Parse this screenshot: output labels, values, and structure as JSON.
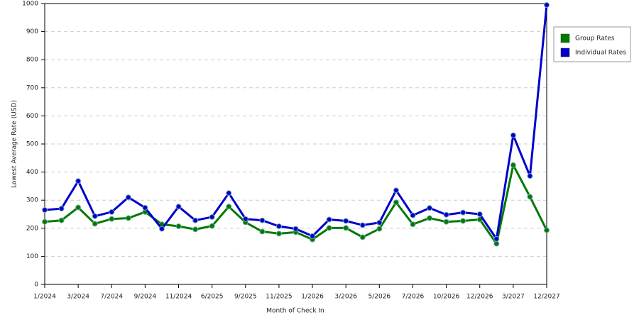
{
  "chart_data": {
    "type": "line",
    "y_label": "Lowest Average Rate (USD)",
    "x_label": "Month of Check In",
    "categories": [
      "1/2024",
      null,
      "3/2024",
      null,
      "7/2024",
      null,
      "9/2024",
      null,
      "11/2024",
      null,
      "6/2025",
      null,
      "9/2025",
      null,
      "11/2025",
      null,
      "1/2026",
      null,
      "3/2026",
      null,
      "5/2026",
      null,
      "7/2026",
      null,
      "10/2026",
      null,
      "12/2026",
      null,
      "3/2027",
      null,
      "12/2027"
    ],
    "series": [
      {
        "name": "Group Rates",
        "color": "#007a00",
        "values": [
          223,
          228,
          274,
          216,
          233,
          236,
          258,
          214,
          207,
          196,
          208,
          277,
          221,
          188,
          181,
          186,
          160,
          201,
          201,
          168,
          198,
          292,
          214,
          236,
          223,
          226,
          231,
          145,
          425,
          312,
          193
        ]
      },
      {
        "name": "Individual Rates",
        "color": "#0000cc",
        "values": [
          265,
          270,
          368,
          243,
          258,
          310,
          273,
          198,
          277,
          228,
          240,
          325,
          233,
          228,
          207,
          198,
          172,
          231,
          226,
          211,
          220,
          335,
          246,
          272,
          248,
          256,
          250,
          162,
          531,
          386,
          995
        ]
      }
    ],
    "ylim": [
      0,
      1000
    ],
    "yticks": [
      0,
      100,
      200,
      300,
      400,
      500,
      600,
      700,
      800,
      900,
      1000
    ],
    "grid": true,
    "legend": "right"
  }
}
